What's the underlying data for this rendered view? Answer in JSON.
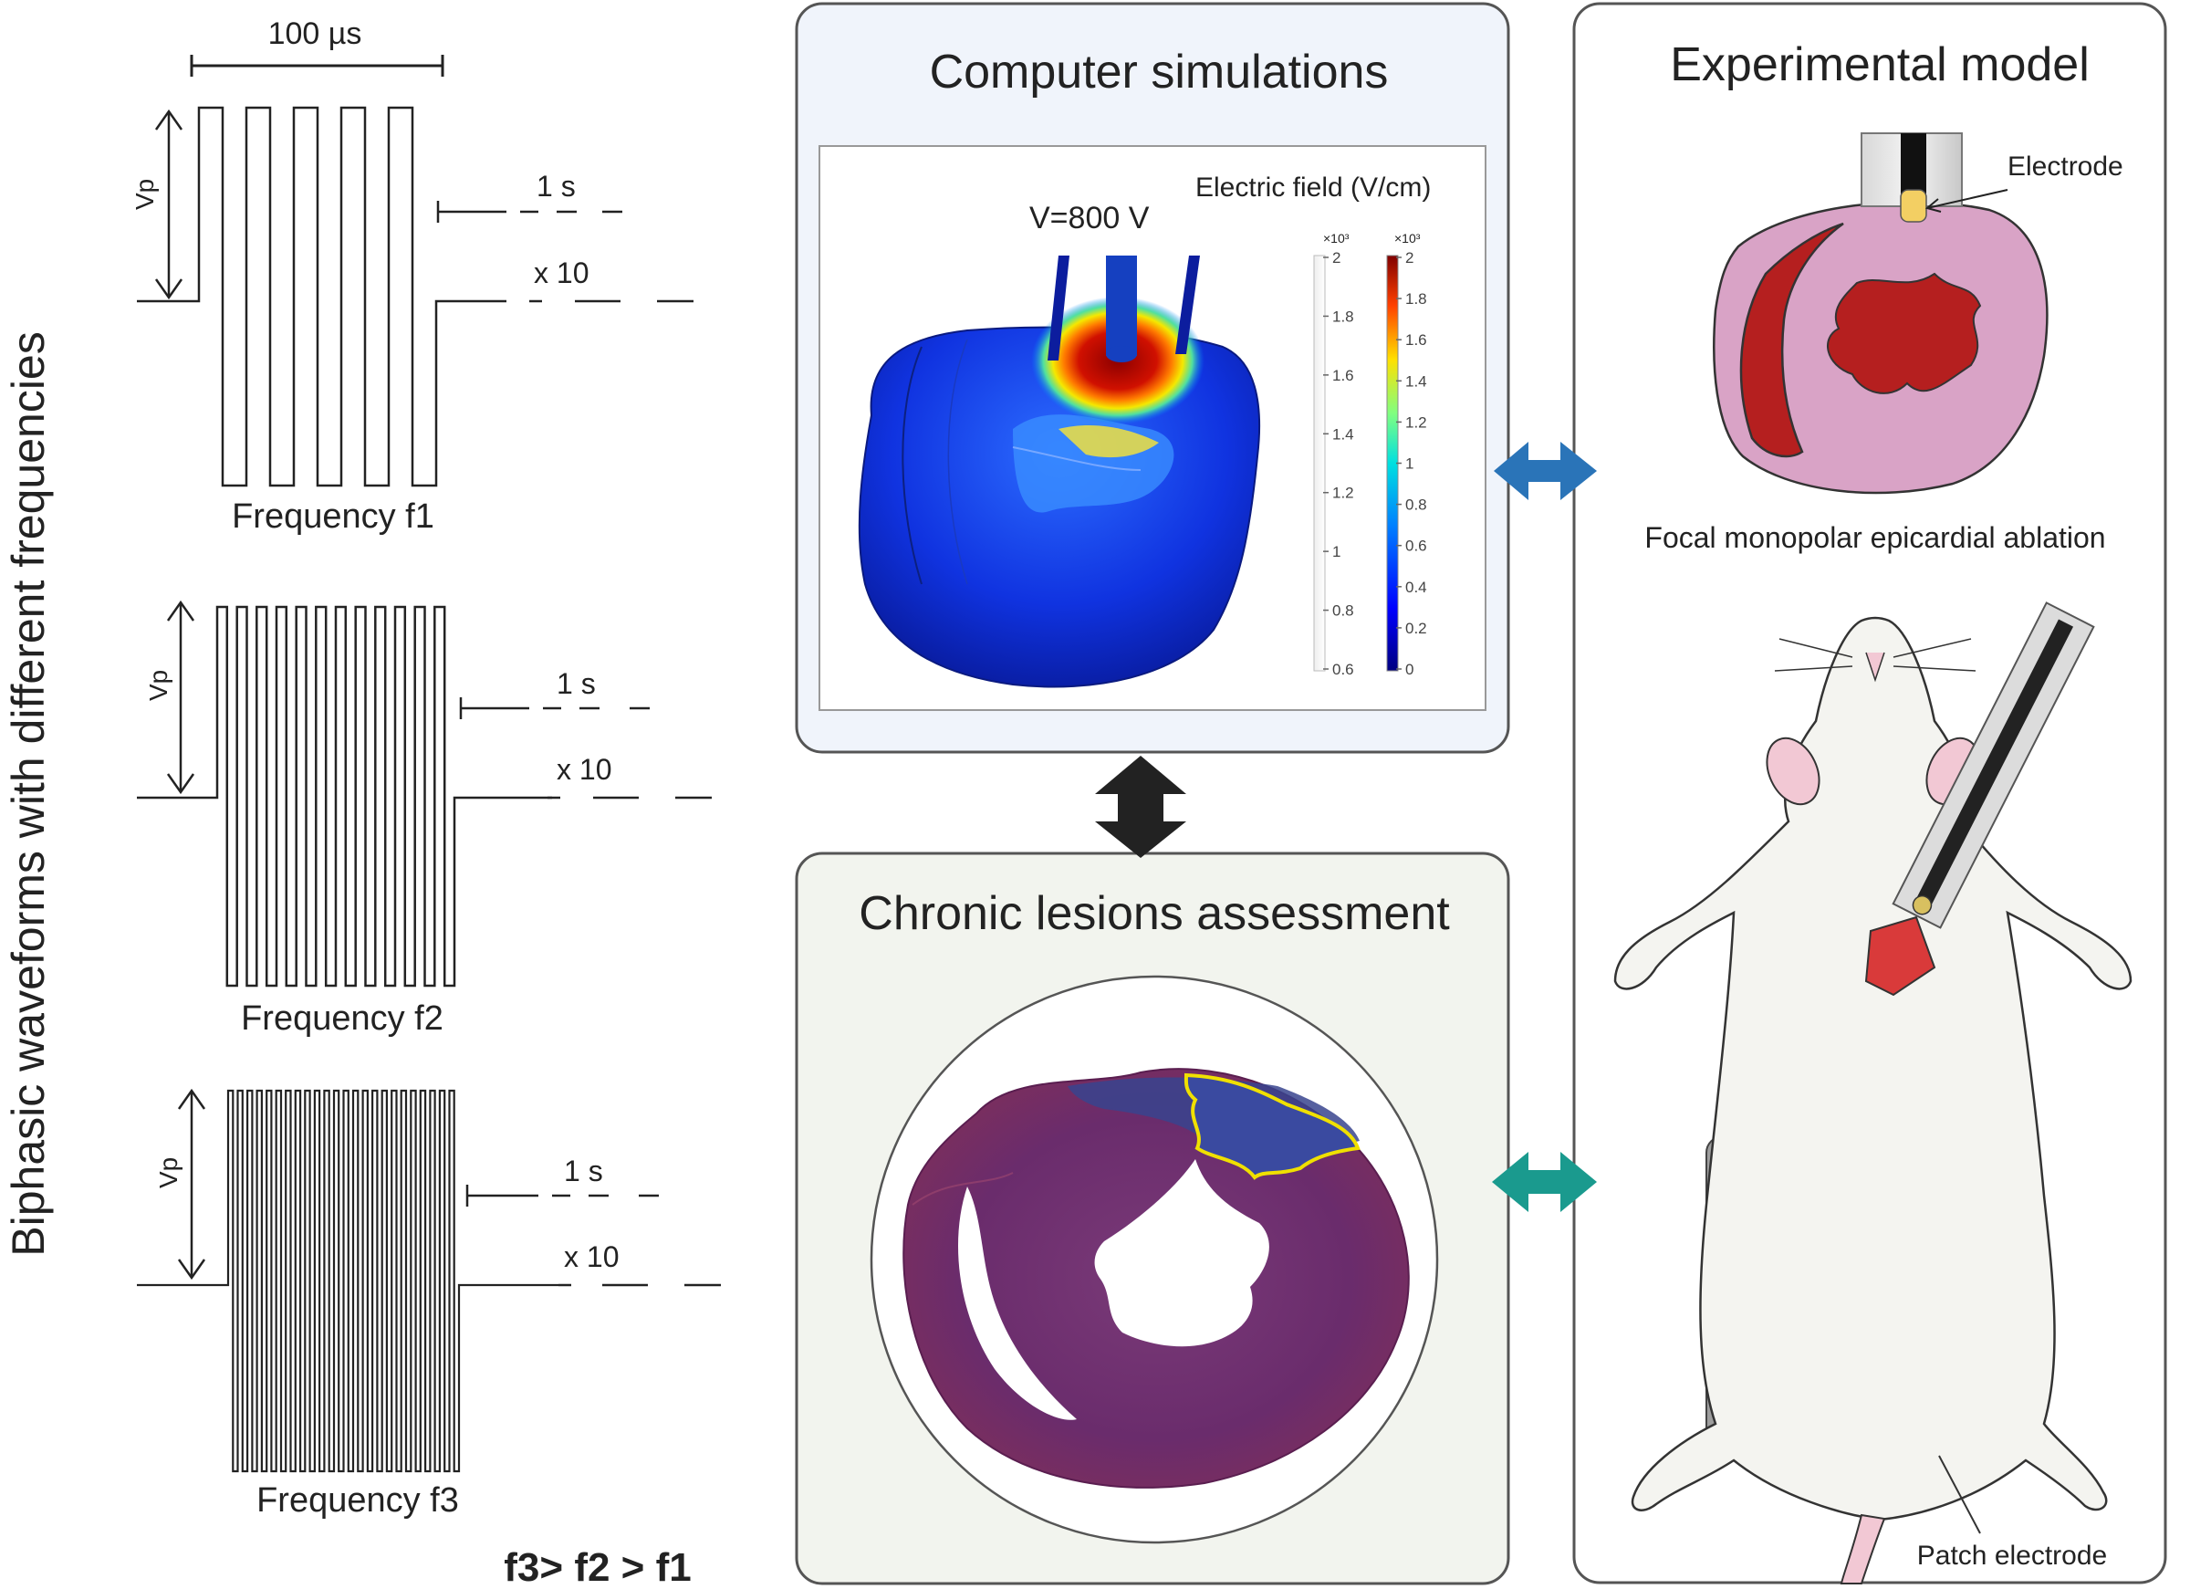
{
  "left_panel": {
    "vertical_title": "Biphasic waveforms with different frequencies",
    "duration_label": "100 µs",
    "waveforms": [
      {
        "amplitude_label": "Vp",
        "interval_label": "1 s",
        "repeat_label": "x 10",
        "name": "Frequency f1",
        "pulses": 5
      },
      {
        "amplitude_label": "Vp",
        "interval_label": "1 s",
        "repeat_label": "x 10",
        "name": "Frequency f2",
        "pulses": 12
      },
      {
        "amplitude_label": "Vp",
        "interval_label": "1 s",
        "repeat_label": "x 10",
        "name": "Frequency f3",
        "pulses": 24
      }
    ],
    "relation": "f3> f2 > f1"
  },
  "simulation_panel": {
    "title": "Computer simulations",
    "voltage_label": "V=800 V",
    "colorbar_title": "Electric field (V/cm)",
    "left_scale": {
      "exponent": "×10³",
      "ticks": [
        "2",
        "1.8",
        "1.6",
        "1.4",
        "1.2",
        "1",
        "0.8",
        "0.6"
      ]
    },
    "right_scale": {
      "exponent": "×10³",
      "ticks": [
        "2",
        "1.8",
        "1.6",
        "1.4",
        "1.2",
        "1",
        "0.8",
        "0.6",
        "0.4",
        "0.2",
        "0"
      ]
    }
  },
  "lesion_panel": {
    "title": "Chronic lesions assessment"
  },
  "experimental_panel": {
    "title": "Experimental model",
    "electrode_label": "Electrode",
    "ablation_caption": "Focal monopolar epicardial ablation",
    "patch_label": "Patch electrode"
  },
  "colors": {
    "sim_bg": "#f0f4fb",
    "lesion_bg": "#f2f4ee",
    "arrow_blue": "#2a74b8",
    "arrow_black": "#222222",
    "arrow_teal": "#1a9a8e",
    "heart_pink": "#d9a3c6",
    "lesion_red": "#b51f1f"
  }
}
